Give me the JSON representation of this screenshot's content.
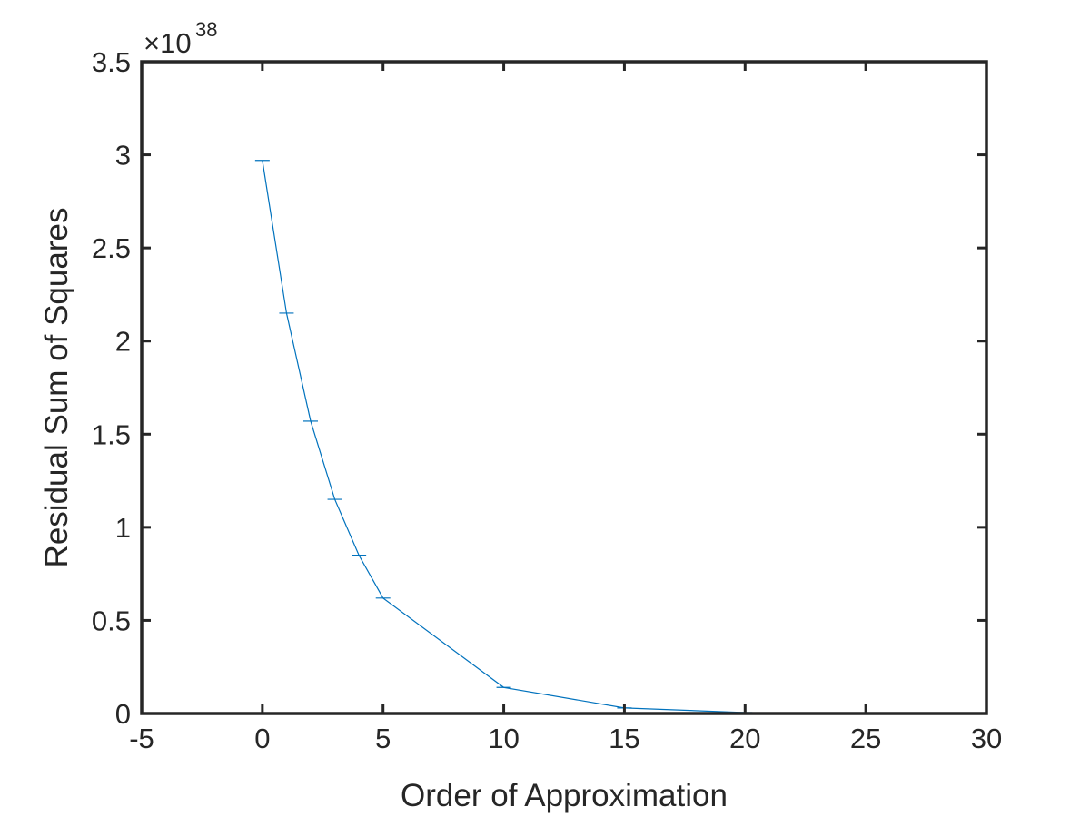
{
  "chart_data": {
    "type": "line",
    "title": "",
    "xlabel": "Order of Approximation",
    "ylabel": "Residual Sum of Squares",
    "y_exponent_label": {
      "prefix": "×10",
      "exponent": "38"
    },
    "xlim": [
      -5,
      30
    ],
    "ylim": [
      0,
      3.5
    ],
    "xticks": [
      -5,
      0,
      5,
      10,
      15,
      20,
      25,
      30
    ],
    "xtick_labels": [
      "-5",
      "0",
      "5",
      "10",
      "15",
      "20",
      "25",
      "30"
    ],
    "yticks": [
      0,
      0.5,
      1,
      1.5,
      2,
      2.5,
      3,
      3.5
    ],
    "ytick_labels": [
      "0",
      "0.5",
      "1",
      "1.5",
      "2",
      "2.5",
      "3",
      "3.5"
    ],
    "grid": false,
    "box": true,
    "series": [
      {
        "color": "#0072bd",
        "marker": "errorbar-cap",
        "x": [
          0,
          1,
          2,
          3,
          4,
          5,
          10,
          15,
          20,
          25
        ],
        "y": [
          2.97,
          2.15,
          1.57,
          1.15,
          0.85,
          0.62,
          0.14,
          0.03,
          0.005,
          0.002
        ]
      }
    ]
  }
}
